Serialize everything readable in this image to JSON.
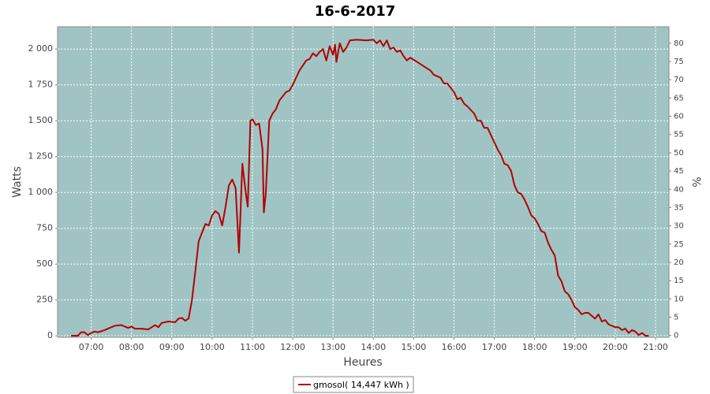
{
  "chart_data": {
    "type": "line",
    "title": "16-6-2017",
    "xlabel": "Heures",
    "ylabel": "Watts",
    "y2label": "%",
    "x": [
      "06:30",
      "06:40",
      "06:45",
      "06:50",
      "06:55",
      "07:00",
      "07:05",
      "07:10",
      "07:20",
      "07:25",
      "07:35",
      "07:45",
      "07:55",
      "08:00",
      "08:05",
      "08:15",
      "08:25",
      "08:35",
      "08:40",
      "08:45",
      "08:55",
      "09:05",
      "09:10",
      "09:15",
      "09:20",
      "09:25",
      "09:30",
      "09:35",
      "09:40",
      "09:45",
      "09:50",
      "09:55",
      "10:00",
      "10:05",
      "10:10",
      "10:15",
      "10:20",
      "10:25",
      "10:30",
      "10:35",
      "10:40",
      "10:45",
      "10:50",
      "10:53",
      "10:57",
      "11:00",
      "11:05",
      "11:10",
      "11:15",
      "11:17",
      "11:20",
      "11:25",
      "11:30",
      "11:35",
      "11:40",
      "11:50",
      "11:55",
      "12:00",
      "12:10",
      "12:20",
      "12:25",
      "12:30",
      "12:35",
      "12:40",
      "12:45",
      "12:50",
      "12:55",
      "13:00",
      "13:03",
      "13:05",
      "13:10",
      "13:15",
      "13:20",
      "13:25",
      "13:35",
      "13:50",
      "14:00",
      "14:05",
      "14:10",
      "14:15",
      "14:20",
      "14:25",
      "14:30",
      "14:35",
      "14:40",
      "14:45",
      "14:50",
      "14:55",
      "15:05",
      "15:15",
      "15:25",
      "15:30",
      "15:40",
      "15:45",
      "15:50",
      "16:00",
      "16:05",
      "16:10",
      "16:15",
      "16:20",
      "16:30",
      "16:35",
      "16:40",
      "16:45",
      "16:50",
      "16:55",
      "17:00",
      "17:05",
      "17:10",
      "17:15",
      "17:20",
      "17:25",
      "17:30",
      "17:35",
      "17:40",
      "17:45",
      "17:50",
      "17:55",
      "18:00",
      "18:05",
      "18:10",
      "18:15",
      "18:20",
      "18:25",
      "18:30",
      "18:35",
      "18:40",
      "18:45",
      "18:50",
      "18:55",
      "19:00",
      "19:05",
      "19:10",
      "19:15",
      "19:20",
      "19:25",
      "19:30",
      "19:35",
      "19:40",
      "19:45",
      "19:50",
      "20:00",
      "20:05",
      "20:10",
      "20:15",
      "20:20",
      "20:25",
      "20:30",
      "20:35",
      "20:40",
      "20:45",
      "20:50"
    ],
    "series": [
      {
        "name": "gmosol( 14,447 kWh )",
        "color": "#b40000",
        "values": [
          0,
          0,
          25,
          25,
          5,
          20,
          30,
          25,
          40,
          50,
          70,
          75,
          55,
          65,
          50,
          50,
          45,
          75,
          60,
          90,
          100,
          95,
          120,
          125,
          105,
          120,
          250,
          450,
          660,
          720,
          780,
          770,
          840,
          870,
          850,
          770,
          900,
          1050,
          1090,
          1030,
          580,
          1200,
          1000,
          900,
          1500,
          1510,
          1470,
          1480,
          1300,
          860,
          1000,
          1500,
          1550,
          1580,
          1640,
          1700,
          1710,
          1750,
          1850,
          1920,
          1930,
          1970,
          1950,
          1980,
          2000,
          1920,
          2020,
          1960,
          2030,
          1910,
          2040,
          1980,
          2010,
          2060,
          2065,
          2060,
          2065,
          2040,
          2060,
          2020,
          2060,
          2000,
          2010,
          1980,
          1990,
          1950,
          1920,
          1940,
          1910,
          1880,
          1850,
          1820,
          1800,
          1760,
          1760,
          1700,
          1650,
          1660,
          1620,
          1600,
          1550,
          1500,
          1500,
          1450,
          1450,
          1400,
          1350,
          1300,
          1260,
          1200,
          1190,
          1150,
          1050,
          1000,
          990,
          950,
          900,
          840,
          820,
          780,
          730,
          720,
          650,
          600,
          560,
          420,
          380,
          310,
          290,
          250,
          200,
          180,
          150,
          160,
          160,
          140,
          120,
          150,
          100,
          110,
          80,
          60,
          60,
          40,
          50,
          20,
          40,
          30,
          5,
          20,
          0,
          0
        ]
      }
    ],
    "xlim": [
      "06:10",
      "21:20"
    ],
    "xticks": [
      "07:00",
      "08:00",
      "09:00",
      "10:00",
      "11:00",
      "12:00",
      "13:00",
      "14:00",
      "15:00",
      "16:00",
      "17:00",
      "18:00",
      "19:00",
      "20:00",
      "21:00"
    ],
    "ylim": [
      -10,
      2155
    ],
    "yticks": [
      0,
      250,
      500,
      750,
      {
        "value": 1000,
        "label": "1 000"
      },
      {
        "value": 1250,
        "label": "1 250"
      },
      {
        "value": 1500,
        "label": "1 500"
      },
      {
        "value": 1750,
        "label": "1 750"
      },
      {
        "value": 2000,
        "label": "2 000"
      }
    ],
    "y2lim": [
      -0.5,
      84.5
    ],
    "y2ticks": [
      0,
      5,
      10,
      15,
      20,
      25,
      30,
      35,
      40,
      45,
      50,
      55,
      60,
      65,
      70,
      75,
      80
    ],
    "grid": true,
    "legend": "bottom"
  }
}
